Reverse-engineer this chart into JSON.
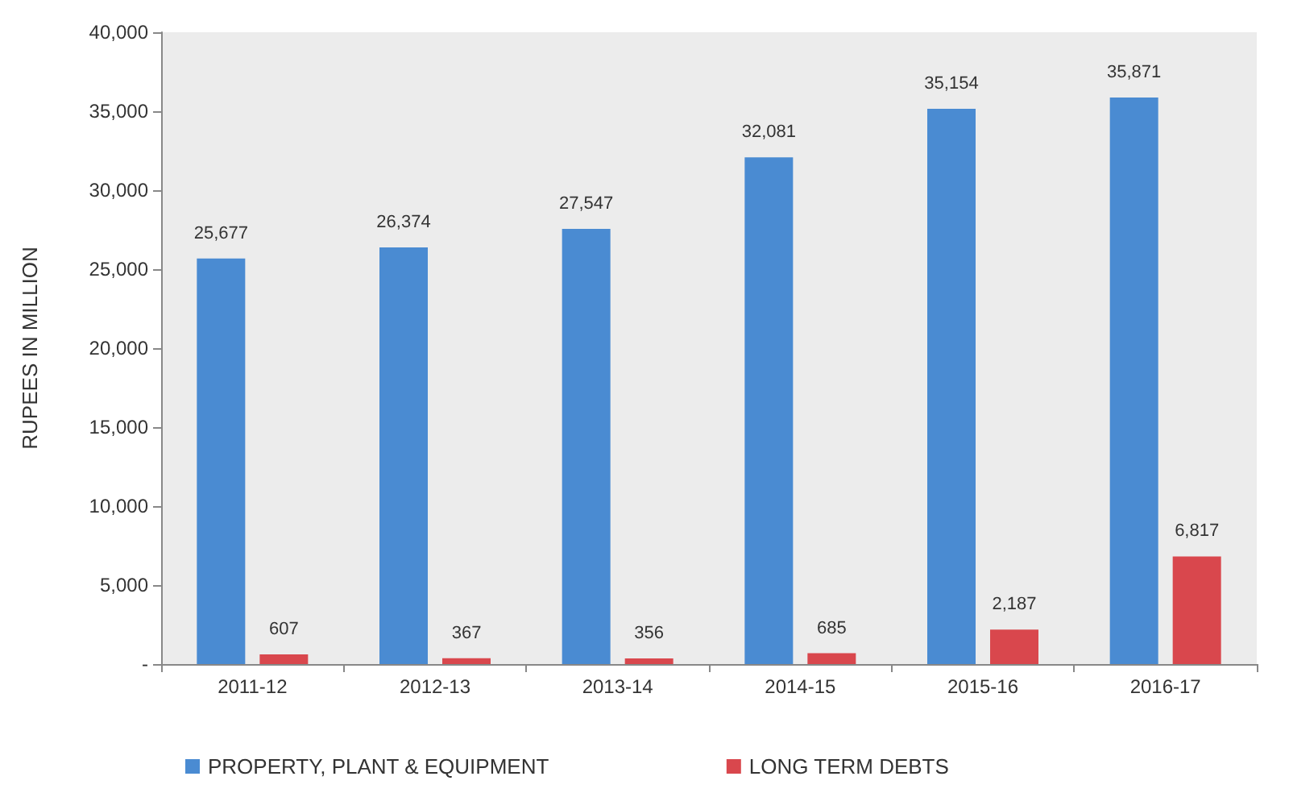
{
  "chart_data": {
    "type": "bar",
    "ylabel": "RUPEES IN MILLION",
    "categories": [
      "2011-12",
      "2012-13",
      "2013-14",
      "2014-15",
      "2015-16",
      "2016-17"
    ],
    "series": [
      {
        "name": "PROPERTY, PLANT & EQUIPMENT",
        "color": "#4a8bd2",
        "values": [
          25677,
          26374,
          27547,
          32081,
          35154,
          35871
        ],
        "value_labels": [
          "25,677",
          "26,374",
          "27,547",
          "32,081",
          "35,154",
          "35,871"
        ]
      },
      {
        "name": "LONG TERM DEBTS",
        "color": "#d9474d",
        "values": [
          607,
          367,
          356,
          685,
          2187,
          6817
        ],
        "value_labels": [
          "607",
          "367",
          "356",
          "685",
          "2,187",
          "6,817"
        ]
      }
    ],
    "ylim": [
      0,
      40000
    ],
    "yticks": [
      {
        "value": 0,
        "label": "-"
      },
      {
        "value": 5000,
        "label": "5,000"
      },
      {
        "value": 10000,
        "label": "10,000"
      },
      {
        "value": 15000,
        "label": "15,000"
      },
      {
        "value": 20000,
        "label": "20,000"
      },
      {
        "value": 25000,
        "label": "25,000"
      },
      {
        "value": 30000,
        "label": "30,000"
      },
      {
        "value": 35000,
        "label": "35,000"
      },
      {
        "value": 40000,
        "label": "40,000"
      }
    ],
    "grid": false,
    "legend": "bottom"
  }
}
